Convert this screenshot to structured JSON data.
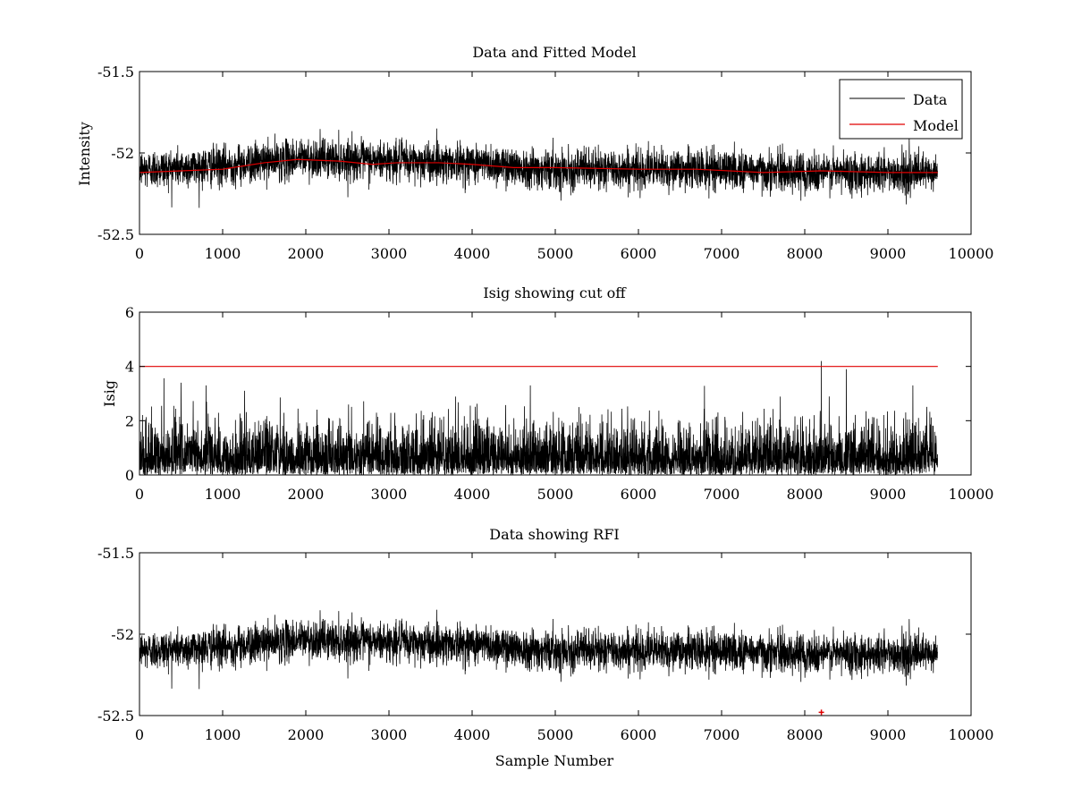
{
  "chart_data": [
    {
      "type": "line",
      "title": "Data and Fitted Model",
      "xlabel": "",
      "ylabel": "Intensity",
      "xlim": [
        0,
        10000
      ],
      "ylim": [
        -52.5,
        -51.5
      ],
      "xticks": [
        0,
        1000,
        2000,
        3000,
        4000,
        5000,
        6000,
        7000,
        8000,
        9000,
        10000
      ],
      "yticks": [
        -52.5,
        -52,
        -51.5
      ],
      "ytick_labels": [
        "-52.5",
        "-52",
        "-51.5"
      ],
      "legend": {
        "position": "top-right",
        "entries": [
          "Data",
          "Model"
        ]
      },
      "series": [
        {
          "name": "Data",
          "color": "#000000",
          "kind": "noise",
          "n_samples": 9600,
          "trend_x": [
            0,
            1000,
            2000,
            3000,
            4000,
            5000,
            6000,
            7000,
            8000,
            9000,
            9600
          ],
          "trend_y": [
            -52.1,
            -52.08,
            -52.03,
            -52.05,
            -52.06,
            -52.1,
            -52.1,
            -52.1,
            -52.12,
            -52.12,
            -52.13
          ],
          "noise_std": 0.06
        },
        {
          "name": "Model",
          "color": "#e00000",
          "x": [
            0,
            500,
            1000,
            1500,
            1900,
            2400,
            2800,
            3100,
            3600,
            4000,
            4500,
            5000,
            6000,
            6700,
            7500,
            8200,
            9000,
            9600
          ],
          "y": [
            -52.12,
            -52.11,
            -52.1,
            -52.06,
            -52.04,
            -52.05,
            -52.07,
            -52.06,
            -52.06,
            -52.07,
            -52.09,
            -52.09,
            -52.1,
            -52.1,
            -52.12,
            -52.11,
            -52.12,
            -52.12
          ]
        }
      ]
    },
    {
      "type": "line",
      "title": "Isig showing cut off",
      "xlabel": "",
      "ylabel": "Isig",
      "xlim": [
        0,
        10000
      ],
      "ylim": [
        0,
        6
      ],
      "xticks": [
        0,
        1000,
        2000,
        3000,
        4000,
        5000,
        6000,
        7000,
        8000,
        9000,
        10000
      ],
      "yticks": [
        0,
        2,
        4,
        6
      ],
      "ytick_labels": [
        "0",
        "2",
        "4",
        "6"
      ],
      "series": [
        {
          "name": "Isig",
          "color": "#000000",
          "kind": "abs-noise",
          "n_samples": 9600,
          "scale": 0.9,
          "spikes": [
            {
              "x": 8200,
              "y": 4.2
            },
            {
              "x": 8500,
              "y": 3.9
            },
            {
              "x": 500,
              "y": 3.4
            },
            {
              "x": 800,
              "y": 3.3
            },
            {
              "x": 4700,
              "y": 3.3
            },
            {
              "x": 9300,
              "y": 3.3
            }
          ]
        },
        {
          "name": "Cutoff",
          "color": "#e00000",
          "x": [
            0,
            9600
          ],
          "y": [
            4,
            4
          ]
        }
      ]
    },
    {
      "type": "line",
      "title": "Data showing RFI",
      "xlabel": "Sample Number",
      "ylabel": "",
      "xlim": [
        0,
        10000
      ],
      "ylim": [
        -52.5,
        -51.5
      ],
      "xticks": [
        0,
        1000,
        2000,
        3000,
        4000,
        5000,
        6000,
        7000,
        8000,
        9000,
        10000
      ],
      "yticks": [
        -52.5,
        -52,
        -51.5
      ],
      "ytick_labels": [
        "-52.5",
        "-52",
        "-51.5"
      ],
      "series": [
        {
          "name": "Data",
          "color": "#000000",
          "kind": "noise",
          "n_samples": 9600,
          "trend_x": [
            0,
            1000,
            2000,
            3000,
            4000,
            5000,
            6000,
            7000,
            8000,
            9000,
            9600
          ],
          "trend_y": [
            -52.1,
            -52.08,
            -52.03,
            -52.05,
            -52.06,
            -52.1,
            -52.1,
            -52.1,
            -52.12,
            -52.12,
            -52.13
          ],
          "noise_std": 0.06
        },
        {
          "name": "RFI",
          "color": "#e00000",
          "kind": "marker",
          "x": [
            8200
          ],
          "y": [
            -52.48
          ]
        }
      ]
    }
  ]
}
